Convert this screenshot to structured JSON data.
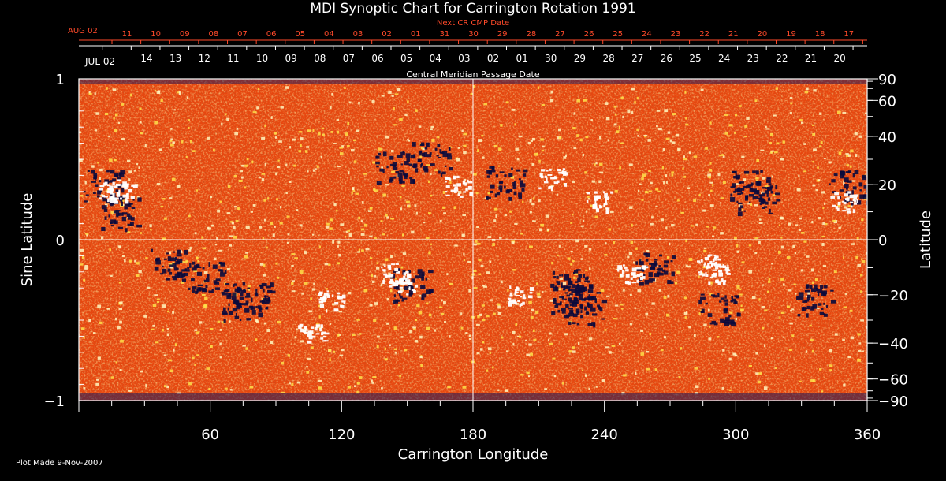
{
  "chart_data": {
    "type": "heatmap",
    "title": "MDI Synoptic Chart for Carrington Rotation 1991",
    "xlabel": "Carrington Longitude",
    "ylabel": "Sine Latitude",
    "ylabel_right": "Latitude",
    "xlim": [
      0,
      360
    ],
    "ylim": [
      -1,
      1
    ],
    "x_ticks": [
      60,
      120,
      180,
      240,
      300,
      360
    ],
    "y_ticks_left": [
      "1",
      "0",
      "−1"
    ],
    "y_ticks_right": [
      90,
      60,
      40,
      20,
      0,
      -20,
      -40,
      -60,
      -90
    ],
    "top_axis_label": "Central Meridian Passage Date",
    "top_axis_first_label": "JUL 02",
    "top_axis_dates": [
      "14",
      "13",
      "12",
      "11",
      "10",
      "09",
      "08",
      "07",
      "06",
      "05",
      "04",
      "03",
      "02",
      "01",
      "30",
      "29",
      "28",
      "27",
      "26",
      "25",
      "24",
      "23",
      "22",
      "21",
      "20"
    ],
    "next_axis_label": "Next CR CMP Date",
    "next_axis_first_label": "AUG 02",
    "next_axis_dates": [
      "11",
      "10",
      "09",
      "08",
      "07",
      "06",
      "05",
      "04",
      "03",
      "02",
      "01",
      "31",
      "30",
      "29",
      "28",
      "27",
      "26",
      "25",
      "24",
      "23",
      "22",
      "21",
      "20",
      "19",
      "18",
      "17"
    ],
    "footnote": "Plot Made  9-Nov-2007",
    "colors": {
      "background": "#000000",
      "field_base": "#e8470f",
      "positive_polarity": "#ffffff",
      "negative_polarity": "#0a0a3c",
      "next_axis_text": "#ff4a2a",
      "text": "#ffffff"
    }
  }
}
